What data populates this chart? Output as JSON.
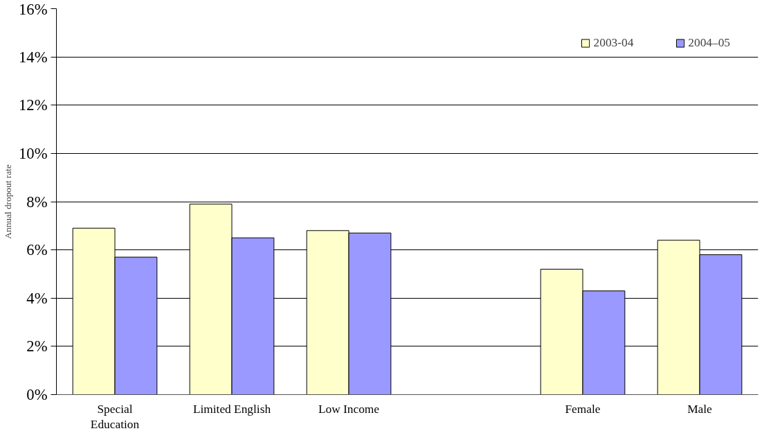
{
  "chart_data": {
    "type": "bar",
    "ylabel": "Annual dropout rate",
    "categories": [
      "Special\nEducation",
      "Limited English",
      "Low Income",
      null,
      "Female",
      "Male"
    ],
    "series": [
      {
        "name": "2003-04",
        "color": "#ffffcc",
        "values": [
          6.9,
          7.9,
          6.8,
          null,
          5.2,
          6.4
        ]
      },
      {
        "name": "2004–05",
        "color": "#9999ff",
        "values": [
          5.7,
          6.5,
          6.7,
          null,
          4.3,
          5.8
        ]
      }
    ],
    "ylim": [
      0,
      16
    ],
    "yticks": [
      {
        "value": 0,
        "label": "0%"
      },
      {
        "value": 2,
        "label": "2%"
      },
      {
        "value": 4,
        "label": "4%"
      },
      {
        "value": 6,
        "label": "6%"
      },
      {
        "value": 8,
        "label": "8%"
      },
      {
        "value": 10,
        "label": "10%"
      },
      {
        "value": 12,
        "label": "12%"
      },
      {
        "value": 14,
        "label": "14%"
      },
      {
        "value": 16,
        "label": "16%"
      }
    ],
    "grid": "y",
    "legend": "top right"
  }
}
